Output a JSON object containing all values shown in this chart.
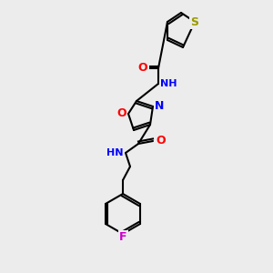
{
  "bg_color": "#ececec",
  "bond_color": "#000000",
  "bond_width": 1.5,
  "atom_colors": {
    "N": "#0000ff",
    "O": "#ff0000",
    "S": "#999900",
    "F": "#cc00cc",
    "H": "#008080",
    "C": "#000000"
  },
  "font_size": 9,
  "font_size_small": 8
}
